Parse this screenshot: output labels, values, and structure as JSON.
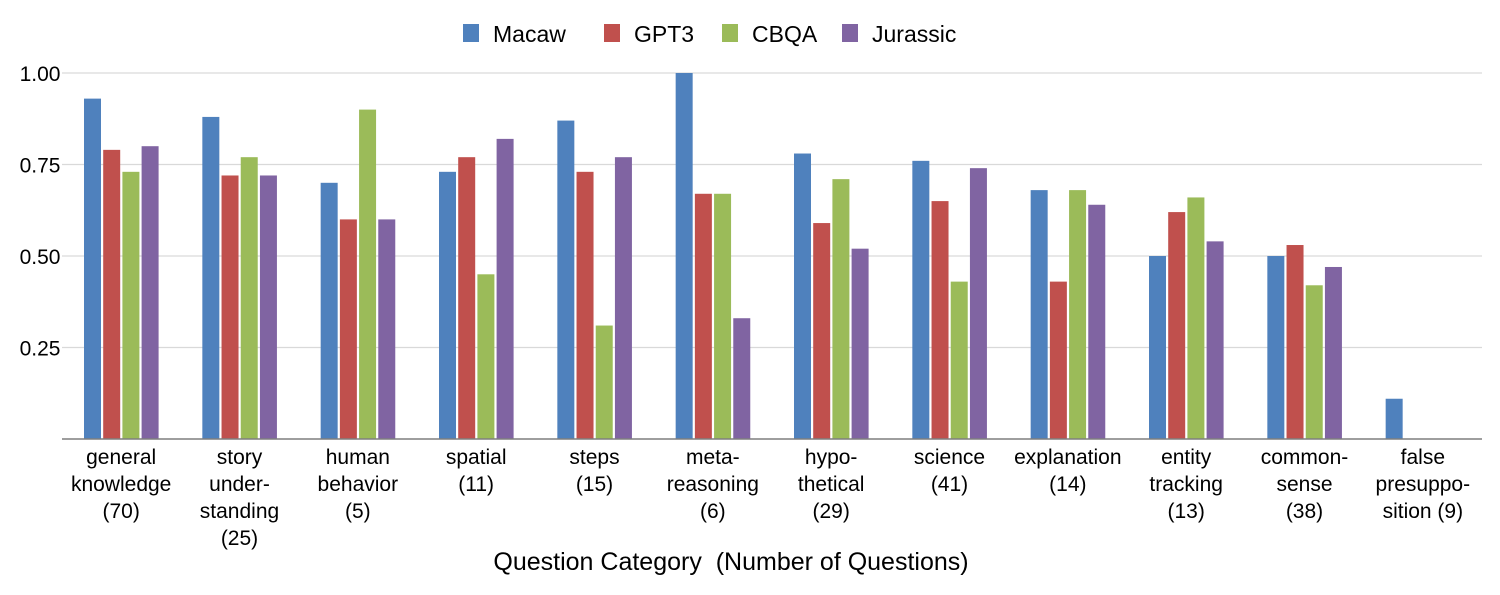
{
  "chart_data": {
    "type": "bar",
    "xlabel": "Question Category  (Number of Questions)",
    "ylabel": "",
    "ylim": [
      0,
      1.0
    ],
    "yticks": [
      "0.25",
      "0.50",
      "0.75",
      "1.00"
    ],
    "ytick_values": [
      0.25,
      0.5,
      0.75,
      1.0
    ],
    "grid": true,
    "legend_position": "top-center",
    "categories": [
      {
        "lines": [
          "general",
          "knowledge",
          "(70)"
        ]
      },
      {
        "lines": [
          "story",
          "under-",
          "standing",
          "(25)"
        ]
      },
      {
        "lines": [
          "human",
          "behavior",
          "(5)"
        ]
      },
      {
        "lines": [
          "spatial",
          "(11)"
        ]
      },
      {
        "lines": [
          "steps",
          "(15)"
        ]
      },
      {
        "lines": [
          "meta-",
          "reasoning",
          "(6)"
        ]
      },
      {
        "lines": [
          "hypo-",
          "thetical",
          "(29)"
        ]
      },
      {
        "lines": [
          "science",
          "(41)"
        ]
      },
      {
        "lines": [
          "explanation",
          "(14)"
        ]
      },
      {
        "lines": [
          "entity",
          "tracking",
          "(13)"
        ]
      },
      {
        "lines": [
          "common-",
          "sense",
          "(38)"
        ]
      },
      {
        "lines": [
          "false",
          "presuppo-",
          "sition (9)"
        ]
      }
    ],
    "series": [
      {
        "name": "Macaw",
        "color": "#4f81bd",
        "values": [
          0.93,
          0.88,
          0.7,
          0.73,
          0.87,
          1.0,
          0.78,
          0.76,
          0.68,
          0.5,
          0.5,
          0.11
        ]
      },
      {
        "name": "GPT3",
        "color": "#c0504d",
        "values": [
          0.79,
          0.72,
          0.6,
          0.77,
          0.73,
          0.67,
          0.59,
          0.65,
          0.43,
          0.62,
          0.53,
          0
        ]
      },
      {
        "name": "CBQA",
        "color": "#9bbb59",
        "values": [
          0.73,
          0.77,
          0.9,
          0.45,
          0.31,
          0.67,
          0.71,
          0.43,
          0.68,
          0.66,
          0.42,
          0
        ]
      },
      {
        "name": "Jurassic",
        "color": "#8064a2",
        "values": [
          0.8,
          0.72,
          0.6,
          0.82,
          0.77,
          0.33,
          0.52,
          0.74,
          0.64,
          0.54,
          0.47,
          0
        ]
      }
    ]
  }
}
